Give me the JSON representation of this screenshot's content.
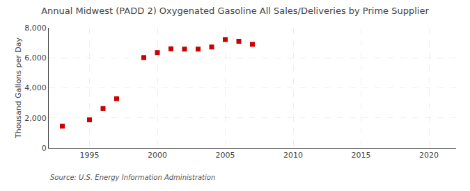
{
  "chart_data": {
    "type": "scatter",
    "title": "Annual Midwest (PADD 2) Oxygenated Gasoline All Sales/Deliveries by Prime Supplier",
    "ylabel": "Thousand Gallons per Day",
    "annotation": "Source: U.S. Energy Information Administration",
    "x": [
      1993,
      1995,
      1996,
      1997,
      1999,
      2000,
      2001,
      2002,
      2003,
      2004,
      2005,
      2006,
      2007
    ],
    "values": [
      1450,
      1870,
      2620,
      3280,
      6020,
      6350,
      6600,
      6580,
      6580,
      6720,
      7220,
      7100,
      6900
    ],
    "color": "#cc0000",
    "marker": "square",
    "xlim": [
      1992,
      2022
    ],
    "xticks": [
      1995,
      2000,
      2005,
      2010,
      2015,
      2020
    ],
    "ylim": [
      0,
      8000
    ],
    "yticks": [
      0,
      {
        "value": 2000,
        "label": "2,000"
      },
      {
        "value": 4000,
        "label": "4,000"
      },
      {
        "value": 6000,
        "label": "6,000"
      },
      {
        "value": 8000,
        "label": "8,000"
      }
    ],
    "grid": true
  }
}
